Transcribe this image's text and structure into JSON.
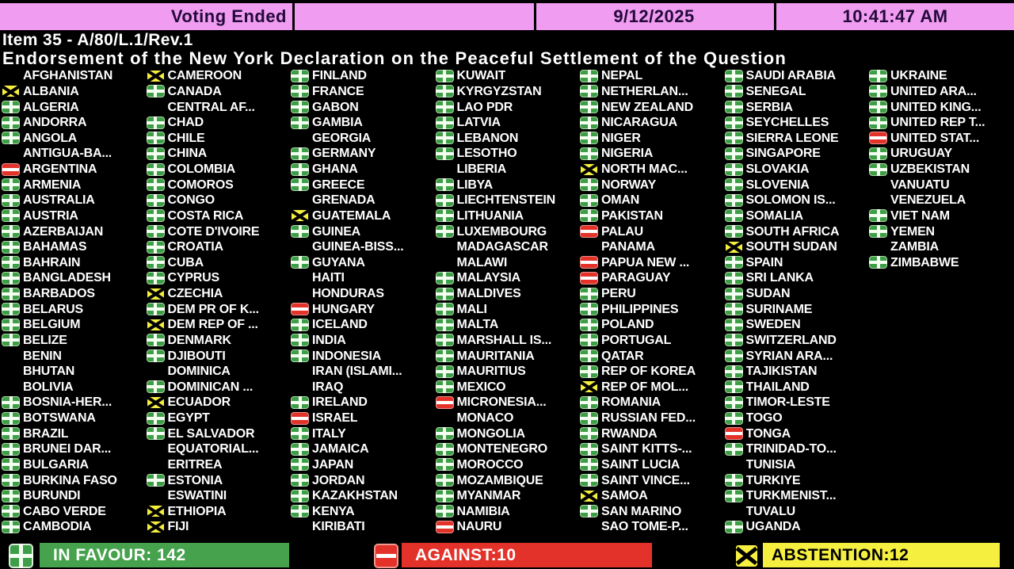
{
  "header": {
    "status": "Voting Ended",
    "date": "9/12/2025",
    "time": "10:41:47 AM"
  },
  "title": {
    "item": "Item 35 - A/80/L.1/Rev.1",
    "subject": "Endorsement of the New York Declaration on the Peaceful Settlement of the Question"
  },
  "vote_legend": {
    "Y": "in favour",
    "N": "against",
    "A": "abstention",
    "": "did not vote"
  },
  "votes": {
    "columns": [
      [
        [
          "AFGHANISTAN",
          ""
        ],
        [
          "ALBANIA",
          "A"
        ],
        [
          "ALGERIA",
          "Y"
        ],
        [
          "ANDORRA",
          "Y"
        ],
        [
          "ANGOLA",
          "Y"
        ],
        [
          "ANTIGUA-BA...",
          ""
        ],
        [
          "ARGENTINA",
          "N"
        ],
        [
          "ARMENIA",
          "Y"
        ],
        [
          "AUSTRALIA",
          "Y"
        ],
        [
          "AUSTRIA",
          "Y"
        ],
        [
          "AZERBAIJAN",
          "Y"
        ],
        [
          "BAHAMAS",
          "Y"
        ],
        [
          "BAHRAIN",
          "Y"
        ],
        [
          "BANGLADESH",
          "Y"
        ],
        [
          "BARBADOS",
          "Y"
        ],
        [
          "BELARUS",
          "Y"
        ],
        [
          "BELGIUM",
          "Y"
        ],
        [
          "BELIZE",
          "Y"
        ],
        [
          "BENIN",
          ""
        ],
        [
          "BHUTAN",
          ""
        ],
        [
          "BOLIVIA",
          ""
        ],
        [
          "BOSNIA-HER...",
          "Y"
        ],
        [
          "BOTSWANA",
          "Y"
        ],
        [
          "BRAZIL",
          "Y"
        ],
        [
          "BRUNEI DAR...",
          "Y"
        ],
        [
          "BULGARIA",
          "Y"
        ],
        [
          "BURKINA FASO",
          "Y"
        ],
        [
          "BURUNDI",
          "Y"
        ],
        [
          "CABO VERDE",
          "Y"
        ],
        [
          "CAMBODIA",
          "Y"
        ]
      ],
      [
        [
          "CAMEROON",
          "A"
        ],
        [
          "CANADA",
          "Y"
        ],
        [
          "CENTRAL AF...",
          ""
        ],
        [
          "CHAD",
          "Y"
        ],
        [
          "CHILE",
          "Y"
        ],
        [
          "CHINA",
          "Y"
        ],
        [
          "COLOMBIA",
          "Y"
        ],
        [
          "COMOROS",
          "Y"
        ],
        [
          "CONGO",
          "Y"
        ],
        [
          "COSTA RICA",
          "Y"
        ],
        [
          "COTE D'IVOIRE",
          "Y"
        ],
        [
          "CROATIA",
          "Y"
        ],
        [
          "CUBA",
          "Y"
        ],
        [
          "CYPRUS",
          "Y"
        ],
        [
          "CZECHIA",
          "A"
        ],
        [
          "DEM PR OF K...",
          "Y"
        ],
        [
          "DEM REP OF ...",
          "A"
        ],
        [
          "DENMARK",
          "Y"
        ],
        [
          "DJIBOUTI",
          "Y"
        ],
        [
          "DOMINICA",
          ""
        ],
        [
          "DOMINICAN ...",
          "Y"
        ],
        [
          "ECUADOR",
          "A"
        ],
        [
          "EGYPT",
          "Y"
        ],
        [
          "EL SALVADOR",
          "Y"
        ],
        [
          "EQUATORIAL...",
          ""
        ],
        [
          "ERITREA",
          ""
        ],
        [
          "ESTONIA",
          "Y"
        ],
        [
          "ESWATINI",
          ""
        ],
        [
          "ETHIOPIA",
          "A"
        ],
        [
          "FIJI",
          "A"
        ]
      ],
      [
        [
          "FINLAND",
          "Y"
        ],
        [
          "FRANCE",
          "Y"
        ],
        [
          "GABON",
          "Y"
        ],
        [
          "GAMBIA",
          "Y"
        ],
        [
          "GEORGIA",
          ""
        ],
        [
          "GERMANY",
          "Y"
        ],
        [
          "GHANA",
          "Y"
        ],
        [
          "GREECE",
          "Y"
        ],
        [
          "GRENADA",
          ""
        ],
        [
          "GUATEMALA",
          "A"
        ],
        [
          "GUINEA",
          "Y"
        ],
        [
          "GUINEA-BISS...",
          ""
        ],
        [
          "GUYANA",
          "Y"
        ],
        [
          "HAITI",
          ""
        ],
        [
          "HONDURAS",
          ""
        ],
        [
          "HUNGARY",
          "N"
        ],
        [
          "ICELAND",
          "Y"
        ],
        [
          "INDIA",
          "Y"
        ],
        [
          "INDONESIA",
          "Y"
        ],
        [
          "IRAN (ISLAMI...",
          ""
        ],
        [
          "IRAQ",
          ""
        ],
        [
          "IRELAND",
          "Y"
        ],
        [
          "ISRAEL",
          "N"
        ],
        [
          "ITALY",
          "Y"
        ],
        [
          "JAMAICA",
          "Y"
        ],
        [
          "JAPAN",
          "Y"
        ],
        [
          "JORDAN",
          "Y"
        ],
        [
          "KAZAKHSTAN",
          "Y"
        ],
        [
          "KENYA",
          "Y"
        ],
        [
          "KIRIBATI",
          ""
        ]
      ],
      [
        [
          "KUWAIT",
          "Y"
        ],
        [
          "KYRGYZSTAN",
          "Y"
        ],
        [
          "LAO PDR",
          "Y"
        ],
        [
          "LATVIA",
          "Y"
        ],
        [
          "LEBANON",
          "Y"
        ],
        [
          "LESOTHO",
          "Y"
        ],
        [
          "LIBERIA",
          ""
        ],
        [
          "LIBYA",
          "Y"
        ],
        [
          "LIECHTENSTEIN",
          "Y"
        ],
        [
          "LITHUANIA",
          "Y"
        ],
        [
          "LUXEMBOURG",
          "Y"
        ],
        [
          "MADAGASCAR",
          ""
        ],
        [
          "MALAWI",
          ""
        ],
        [
          "MALAYSIA",
          "Y"
        ],
        [
          "MALDIVES",
          "Y"
        ],
        [
          "MALI",
          "Y"
        ],
        [
          "MALTA",
          "Y"
        ],
        [
          "MARSHALL IS...",
          "Y"
        ],
        [
          "MAURITANIA",
          "Y"
        ],
        [
          "MAURITIUS",
          "Y"
        ],
        [
          "MEXICO",
          "Y"
        ],
        [
          "MICRONESIA...",
          "N"
        ],
        [
          "MONACO",
          ""
        ],
        [
          "MONGOLIA",
          "Y"
        ],
        [
          "MONTENEGRO",
          "Y"
        ],
        [
          "MOROCCO",
          "Y"
        ],
        [
          "MOZAMBIQUE",
          "Y"
        ],
        [
          "MYANMAR",
          "Y"
        ],
        [
          "NAMIBIA",
          "Y"
        ],
        [
          "NAURU",
          "N"
        ]
      ],
      [
        [
          "NEPAL",
          "Y"
        ],
        [
          "NETHERLAN...",
          "Y"
        ],
        [
          "NEW ZEALAND",
          "Y"
        ],
        [
          "NICARAGUA",
          "Y"
        ],
        [
          "NIGER",
          "Y"
        ],
        [
          "NIGERIA",
          "Y"
        ],
        [
          "NORTH MAC...",
          "A"
        ],
        [
          "NORWAY",
          "Y"
        ],
        [
          "OMAN",
          "Y"
        ],
        [
          "PAKISTAN",
          "Y"
        ],
        [
          "PALAU",
          "N"
        ],
        [
          "PANAMA",
          ""
        ],
        [
          "PAPUA NEW ...",
          "N"
        ],
        [
          "PARAGUAY",
          "N"
        ],
        [
          "PERU",
          "Y"
        ],
        [
          "PHILIPPINES",
          "Y"
        ],
        [
          "POLAND",
          "Y"
        ],
        [
          "PORTUGAL",
          "Y"
        ],
        [
          "QATAR",
          "Y"
        ],
        [
          "REP OF KOREA",
          "Y"
        ],
        [
          "REP OF MOL...",
          "A"
        ],
        [
          "ROMANIA",
          "Y"
        ],
        [
          "RUSSIAN FED...",
          "Y"
        ],
        [
          "RWANDA",
          "Y"
        ],
        [
          "SAINT KITTS-...",
          "Y"
        ],
        [
          "SAINT LUCIA",
          "Y"
        ],
        [
          "SAINT VINCE...",
          "Y"
        ],
        [
          "SAMOA",
          "A"
        ],
        [
          "SAN MARINO",
          "Y"
        ],
        [
          "SAO TOME-P...",
          ""
        ]
      ],
      [
        [
          "SAUDI ARABIA",
          "Y"
        ],
        [
          "SENEGAL",
          "Y"
        ],
        [
          "SERBIA",
          "Y"
        ],
        [
          "SEYCHELLES",
          "Y"
        ],
        [
          "SIERRA LEONE",
          "Y"
        ],
        [
          "SINGAPORE",
          "Y"
        ],
        [
          "SLOVAKIA",
          "Y"
        ],
        [
          "SLOVENIA",
          "Y"
        ],
        [
          "SOLOMON IS...",
          "Y"
        ],
        [
          "SOMALIA",
          "Y"
        ],
        [
          "SOUTH AFRICA",
          "Y"
        ],
        [
          "SOUTH SUDAN",
          "A"
        ],
        [
          "SPAIN",
          "Y"
        ],
        [
          "SRI LANKA",
          "Y"
        ],
        [
          "SUDAN",
          "Y"
        ],
        [
          "SURINAME",
          "Y"
        ],
        [
          "SWEDEN",
          "Y"
        ],
        [
          "SWITZERLAND",
          "Y"
        ],
        [
          "SYRIAN ARA...",
          "Y"
        ],
        [
          "TAJIKISTAN",
          "Y"
        ],
        [
          "THAILAND",
          "Y"
        ],
        [
          "TIMOR-LESTE",
          "Y"
        ],
        [
          "TOGO",
          "Y"
        ],
        [
          "TONGA",
          "N"
        ],
        [
          "TRINIDAD-TO...",
          "Y"
        ],
        [
          "TUNISIA",
          ""
        ],
        [
          "TURKIYE",
          "Y"
        ],
        [
          "TURKMENIST...",
          "Y"
        ],
        [
          "TUVALU",
          ""
        ],
        [
          "UGANDA",
          "Y"
        ]
      ],
      [
        [
          "UKRAINE",
          "Y"
        ],
        [
          "UNITED ARA...",
          "Y"
        ],
        [
          "UNITED KING...",
          "Y"
        ],
        [
          "UNITED REP T...",
          "Y"
        ],
        [
          "UNITED STAT...",
          "N"
        ],
        [
          "URUGUAY",
          "Y"
        ],
        [
          "UZBEKISTAN",
          "Y"
        ],
        [
          "VANUATU",
          ""
        ],
        [
          "VENEZUELA",
          ""
        ],
        [
          "VIET NAM",
          "Y"
        ],
        [
          "YEMEN",
          "Y"
        ],
        [
          "ZAMBIA",
          ""
        ],
        [
          "ZIMBABWE",
          "Y"
        ]
      ]
    ]
  },
  "summary": {
    "in_favour": "IN FAVOUR: 142",
    "against": "AGAINST:10",
    "abstention": "ABSTENTION:12",
    "in_favour_count": 142,
    "against_count": 10,
    "abstention_count": 12
  },
  "colors": {
    "header_bg": "#F09CF0",
    "favour_green": "#46A24C",
    "against_red": "#E3322A",
    "abstention_yellow": "#F5EF3F",
    "text_white": "#FFFFFF",
    "background": "#000000"
  }
}
